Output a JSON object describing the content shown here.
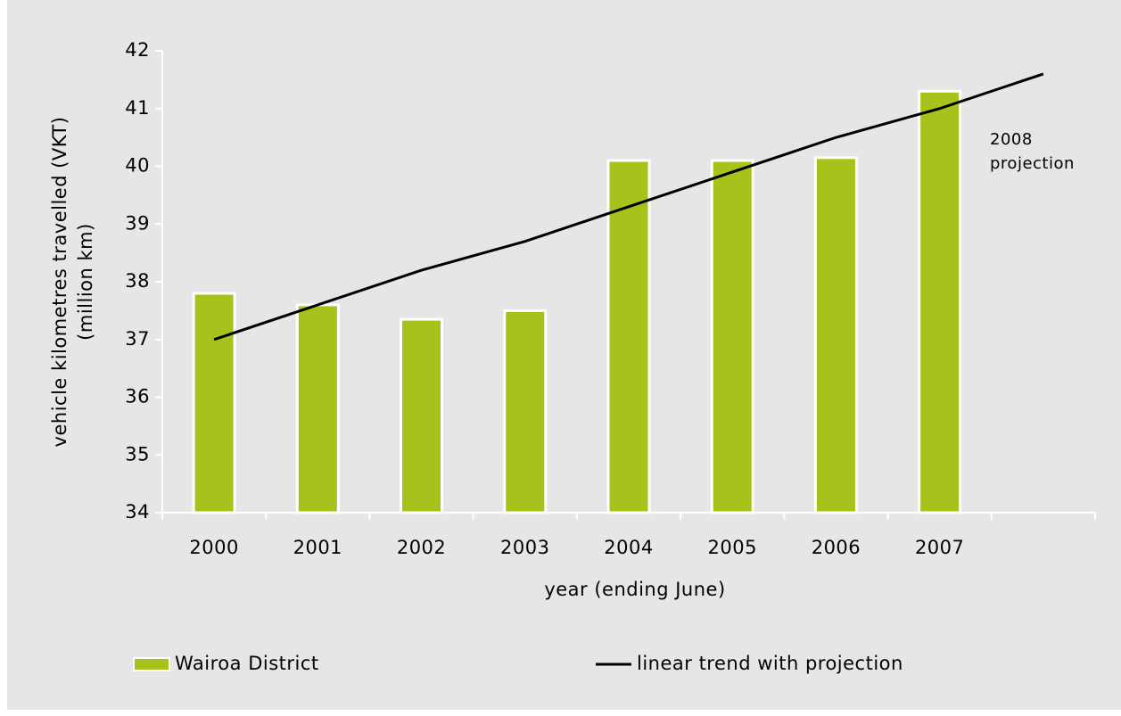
{
  "chart_data": {
    "type": "bar",
    "x_label": "year (ending June)",
    "y_label": [
      "vehicle kilometres travelled (VKT)",
      "(million km)"
    ],
    "annotation": [
      "2008",
      "projection"
    ],
    "categories": [
      "2000",
      "2001",
      "2002",
      "2003",
      "2004",
      "2005",
      "2006",
      "2007",
      null
    ],
    "series": [
      {
        "name": "Wairoa District",
        "type": "bar",
        "color": "#a9c21b",
        "values": [
          37.8,
          37.6,
          37.35,
          37.5,
          40.1,
          40.1,
          40.15,
          41.3,
          null
        ]
      },
      {
        "name": "linear trend with projection",
        "type": "line",
        "color": "#000000",
        "values": [
          37.0,
          37.6,
          38.2,
          38.7,
          39.3,
          39.9,
          40.5,
          41.0,
          41.6
        ]
      }
    ],
    "ylim": [
      34,
      42
    ],
    "yticks": [
      34,
      35,
      36,
      37,
      38,
      39,
      40,
      41,
      42
    ],
    "grid": false
  }
}
